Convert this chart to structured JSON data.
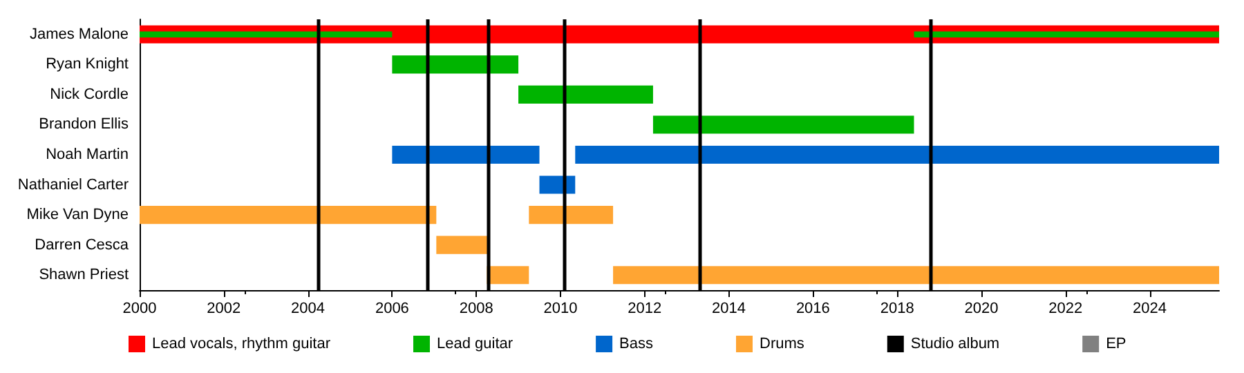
{
  "chart_data": {
    "type": "bar",
    "orientation": "horizontal",
    "categories": [
      "James Malone",
      "Ryan Knight",
      "Nick Cordle",
      "Brandon Ellis",
      "Noah Martin",
      "Nathaniel Carter",
      "Mike Van Dyne",
      "Darren Cesca",
      "Shawn Priest"
    ],
    "series": [
      {
        "name": "Lead vocals, rhythm guitar",
        "color": "#ff0000",
        "base": [
          2000,
          null,
          null,
          null,
          null,
          null,
          null,
          null,
          null
        ],
        "values": [
          25.65,
          null,
          null,
          null,
          null,
          null,
          null,
          null,
          null
        ]
      },
      {
        "name": "Lead guitar",
        "color": "#00b400",
        "base": [
          2000,
          2006,
          2009,
          2012.2,
          null,
          null,
          null,
          null,
          null
        ],
        "values": [
          6,
          3,
          3.2,
          6.2,
          null,
          null,
          null,
          null,
          null
        ]
      },
      {
        "color": "#00b400",
        "base": [
          2018.4,
          null,
          null,
          null,
          null,
          null,
          null,
          null,
          null
        ],
        "values": [
          7.25,
          null,
          null,
          null,
          null,
          null,
          null,
          null,
          null
        ]
      },
      {
        "name": "Bass",
        "color": "#0066cc",
        "base": [
          null,
          null,
          null,
          null,
          2006,
          2009.5,
          null,
          null,
          null
        ],
        "values": [
          null,
          null,
          null,
          null,
          3.5,
          0.85,
          null,
          null,
          null
        ]
      },
      {
        "color": "#0066cc",
        "base": [
          null,
          null,
          null,
          null,
          2010.35,
          null,
          null,
          null,
          null
        ],
        "values": [
          null,
          null,
          null,
          null,
          15.3,
          null,
          null,
          null,
          null
        ]
      },
      {
        "name": "Drums",
        "color": "#ffa533",
        "base": [
          null,
          null,
          null,
          null,
          null,
          null,
          2000,
          2007.05,
          2008.25
        ],
        "values": [
          null,
          null,
          null,
          null,
          null,
          null,
          7.05,
          1.25,
          1
        ]
      },
      {
        "color": "#ffa533",
        "base": [
          null,
          null,
          null,
          null,
          null,
          null,
          2009.25,
          null,
          2011.25
        ],
        "values": [
          null,
          null,
          null,
          null,
          null,
          null,
          2,
          null,
          14.4
        ]
      },
      {
        "name": "Studio album",
        "color": "#000000",
        "values": [
          null,
          null,
          null,
          null,
          null,
          null,
          null,
          null,
          null
        ]
      },
      {
        "name": "EP",
        "color": "#808080",
        "values": [
          null,
          null,
          null,
          null,
          null,
          null,
          null,
          null,
          null
        ]
      }
    ],
    "ref_lines": [
      {
        "axis": "x",
        "value": 2004.25,
        "color": "#000000"
      },
      {
        "axis": "x",
        "value": 2006.85,
        "color": "#000000"
      },
      {
        "axis": "x",
        "value": 2008.3,
        "color": "#000000"
      },
      {
        "axis": "x",
        "value": 2010.1,
        "color": "#000000"
      },
      {
        "axis": "x",
        "value": 2013.3,
        "color": "#000000"
      },
      {
        "axis": "x",
        "value": 2018.8,
        "color": "#000000"
      }
    ],
    "xlim": [
      2000,
      2025.65
    ],
    "xticks": [
      2000,
      2002,
      2004,
      2006,
      2008,
      2010,
      2012,
      2014,
      2016,
      2018,
      2020,
      2022,
      2024
    ],
    "grid": false,
    "legend": "bottom"
  }
}
